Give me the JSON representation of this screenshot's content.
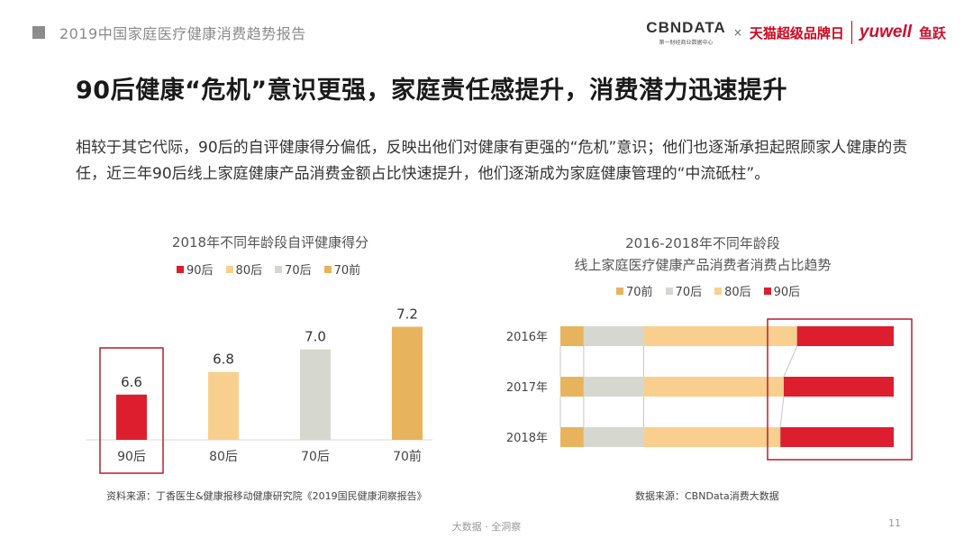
{
  "header": {
    "title": "2019中国家庭医疗健康消费趋势报告"
  },
  "logos": {
    "cbndata": "CBNDATA",
    "cbndata_sub": "第一财经商业数据中心",
    "times": "×",
    "tmall": "天猫超级品牌日",
    "yuwell": "yuwell",
    "yuwell_cn": "鱼跃"
  },
  "main_title": "90后健康“危机”意识更强，家庭责任感提升，消费潜力迅速提升",
  "intro": "相较于其它代际，90后的自评健康得分偏低，反映出他们对健康有更强的“危机”意识；他们也逐渐承担起照顾家人健康的责任，近三年90后线上家庭健康产品消费金额占比快速提升，他们逐渐成为家庭健康管理的“中流砥柱”。",
  "colors": {
    "c90": "#dc1e2e",
    "c80": "#f9cf8f",
    "c70": "#d6d8cf",
    "c70q": "#e7b45d",
    "highlight": "#b51f2b"
  },
  "chart_data": [
    {
      "type": "bar",
      "title": "2018年不同年龄段自评健康得分",
      "legend": [
        "90后",
        "80后",
        "70后",
        "70前"
      ],
      "categories": [
        "90后",
        "80后",
        "70后",
        "70前"
      ],
      "values": [
        6.6,
        6.8,
        7.0,
        7.2
      ],
      "value_labels": [
        "6.6",
        "6.8",
        "7.0",
        "7.2"
      ],
      "bar_colors": [
        "#dc1e2e",
        "#f9cf8f",
        "#d6d8cf",
        "#e7b45d"
      ],
      "ylim": [
        6.2,
        7.3
      ],
      "grid": false,
      "highlighted_category": "90后",
      "source": "资料来源：丁香医生&健康报移动健康研究院《2019国民健康洞察报告》"
    },
    {
      "type": "bar",
      "orientation": "horizontal",
      "stacked": "100%",
      "title": [
        "2016-2018年不同年龄段",
        "线上家庭医疗健康产品消费者消费占比趋势"
      ],
      "legend": [
        "70前",
        "70后",
        "80后",
        "90后"
      ],
      "categories": [
        "2016年",
        "2017年",
        "2018年"
      ],
      "series": [
        {
          "name": "70前",
          "color": "#e7b45d",
          "values": [
            0.07,
            0.07,
            0.07
          ]
        },
        {
          "name": "70后",
          "color": "#d6d8cf",
          "values": [
            0.18,
            0.18,
            0.18
          ]
        },
        {
          "name": "80后",
          "color": "#f9cf8f",
          "values": [
            0.46,
            0.42,
            0.41
          ]
        },
        {
          "name": "90后",
          "color": "#dc1e2e",
          "values": [
            0.29,
            0.33,
            0.34
          ]
        }
      ],
      "connector_lines": true,
      "highlighted_series": "90后",
      "source": "数据来源：CBNData消费大数据"
    }
  ],
  "footer": "大数据 · 全洞察",
  "page_number": "11"
}
